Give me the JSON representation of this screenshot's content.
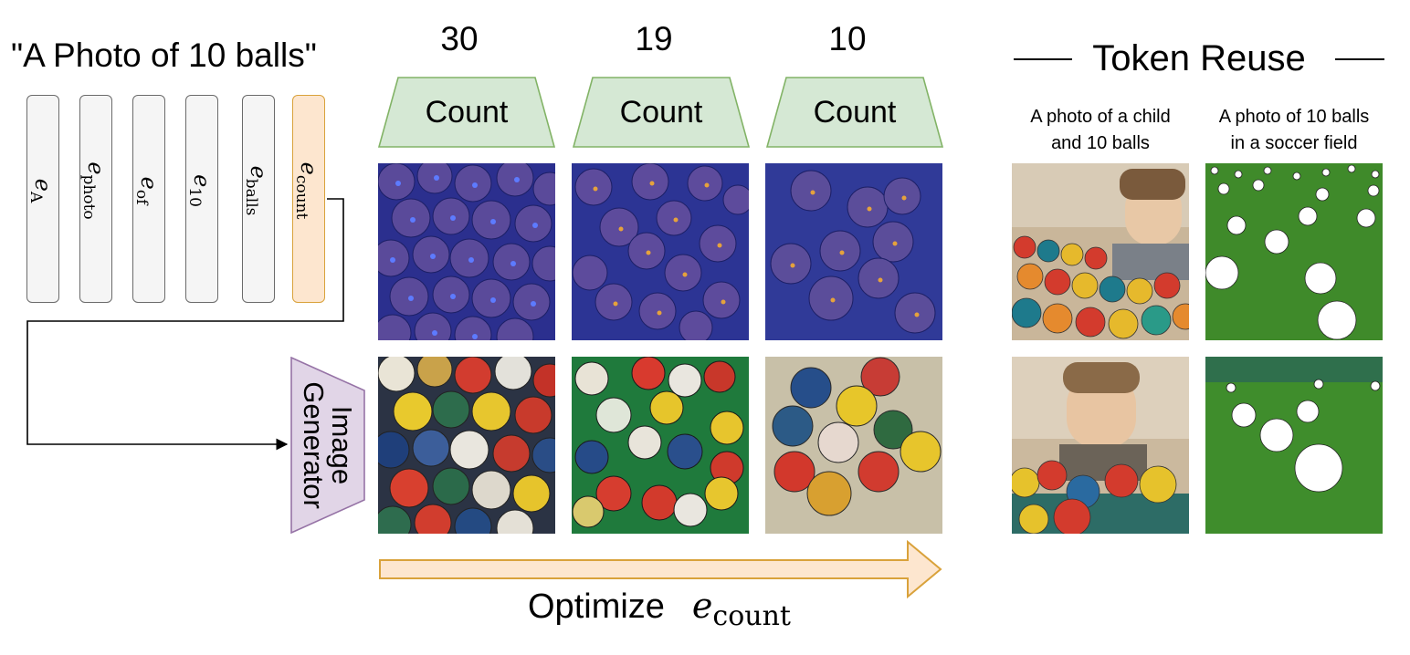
{
  "prompt": "\"A Photo of 10 balls\"",
  "tokens": [
    {
      "base": "e",
      "sub": "A"
    },
    {
      "base": "e",
      "sub": "photo"
    },
    {
      "base": "e",
      "sub": "of"
    },
    {
      "base": "e",
      "sub": "10"
    },
    {
      "base": "e",
      "sub": "balls"
    },
    {
      "base": "e",
      "sub": "count"
    }
  ],
  "counts": [
    {
      "number": "30",
      "label": "Count"
    },
    {
      "number": "19",
      "label": "Count"
    },
    {
      "number": "10",
      "label": "Count"
    }
  ],
  "generator": {
    "line1": "Image",
    "line2": "Generator"
  },
  "optimize": {
    "text": "Optimize",
    "base": "e",
    "sub": "count"
  },
  "token_reuse": {
    "title": "Token Reuse",
    "captions": [
      {
        "line1": "A photo of a child",
        "line2": "and 10 balls"
      },
      {
        "line1": "A photo of 10 balls",
        "line2": "in a soccer field"
      }
    ]
  },
  "colors": {
    "count_fill": "#d5e8d4",
    "count_stroke": "#82b366",
    "generator_fill": "#e1d5e7",
    "generator_stroke": "#9673a6",
    "count_token_fill": "#fde6cf",
    "count_token_stroke": "#d9a23b",
    "arrow_fill": "#fde6cf",
    "arrow_stroke": "#d9a23b"
  }
}
